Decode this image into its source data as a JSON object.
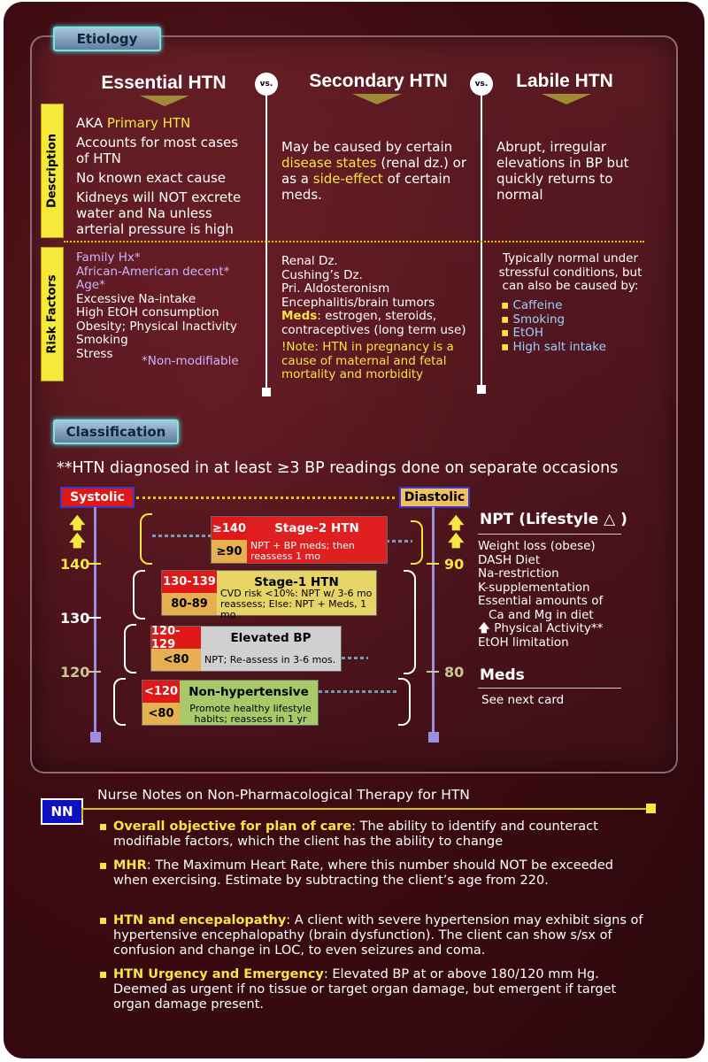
{
  "etiology": {
    "tag": "Etiology",
    "headers": [
      "Essential HTN",
      "Secondary HTN",
      "Labile HTN"
    ],
    "vs": "vs.",
    "sides": {
      "description": "Description",
      "risk": "Risk Factors"
    },
    "essential": {
      "desc": [
        {
          "pre": "AKA ",
          "hl": "Primary HTN",
          "post": ""
        },
        "Accounts for most cases of HTN",
        "No known exact cause",
        "Kidneys will NOT excrete water and Na unless arterial pressure is high"
      ],
      "risk_nonmod": [
        "Family Hx*",
        "African-American decent*",
        "Age*"
      ],
      "risk": [
        "Excessive Na-intake",
        "High EtOH consumption",
        "Obesity; Physical Inactivity",
        "Smoking",
        "Stress"
      ],
      "nonmod_note": "*Non-modifiable"
    },
    "secondary": {
      "desc_a": "May be caused by certain",
      "desc_hl1": "disease states",
      "desc_b": "(renal dz.) or as a",
      "desc_hl2": "side-effect",
      "desc_c": "of certain meds.",
      "risk": [
        "Renal Dz.",
        "Cushing’s Dz.",
        "Pri. Aldosteronism",
        "Encephalitis/brain tumors"
      ],
      "meds_label": "Meds",
      "meds_text": ": estrogen, steroids, contraceptives (long term use)",
      "note": "!Note: HTN in pregnancy is a cause of maternal and fetal mortality and morbidity"
    },
    "labile": {
      "desc": "Abrupt, irregular elevations in BP but quickly returns to normal",
      "risk_intro": "Typically normal under stressful conditions, but can also be caused by:",
      "risk": [
        "Caffeine",
        "Smoking",
        "EtOH",
        "High salt intake"
      ]
    }
  },
  "classification": {
    "tag": "Classification",
    "note": "**HTN diagnosed in at least ≥3 BP readings done on separate occasions",
    "systolic": "Systolic",
    "diastolic": "Diastolic",
    "ticks_sys": [
      "140",
      "130",
      "120"
    ],
    "ticks_dia": [
      "90",
      "80"
    ],
    "stages": [
      {
        "name": "Stage-2 HTN",
        "sys": "≥140",
        "dia": "≥90",
        "desc": "NPT + BP meds; then reassess 1 mo"
      },
      {
        "name": "Stage-1 HTN",
        "sys": "130-139",
        "dia": "80-89",
        "desc": "CVD risk <10%: NPT w/ 3-6 mo reassess; Else: NPT + Meds, 1 mo"
      },
      {
        "name": "Elevated BP",
        "sys": "120-129",
        "dia": "<80",
        "desc": "NPT; Re-assess in 3-6 mos."
      },
      {
        "name": "Non-hypertensive",
        "sys": "<120",
        "dia": "<80",
        "desc": "Promote healthy lifestyle habits; reassess in 1 yr"
      }
    ],
    "npt_title": "NPT (Lifestyle △ )",
    "npt": [
      "Weight loss (obese)",
      "DASH Diet",
      "Na-restriction",
      "K-supplementation",
      "Essential amounts of",
      "Ca and Mg  in diet",
      "Physical Activity**",
      "EtOH limitation"
    ],
    "meds_title": "Meds",
    "meds_text": "See next card"
  },
  "nurse_notes": {
    "badge": "NN",
    "title": "Nurse Notes on Non-Pharmacological Therapy for HTN",
    "items": [
      {
        "label": "Overall objective for plan of care",
        "text": ": The ability to identify and counteract modifiable factors, which the client has the ability to change"
      },
      {
        "label": "MHR",
        "text": ": The Maximum Heart Rate, where this number should NOT be exceeded when exercising. Estimate by subtracting the client’s age from 220."
      },
      {
        "label": "HTN and encepalopathy",
        "text": ": A client with severe hypertension may exhibit signs of hypertensive encephalopathy (brain dysfunction). The client can show s/sx of confusion and change in LOC, to even seizures and coma."
      },
      {
        "label": "HTN Urgency and Emergency",
        "text": ": Elevated BP at or above 180/120 mm Hg. Deemed as urgent if no tissue or target organ damage, but emergent if target organ damage present."
      }
    ]
  }
}
